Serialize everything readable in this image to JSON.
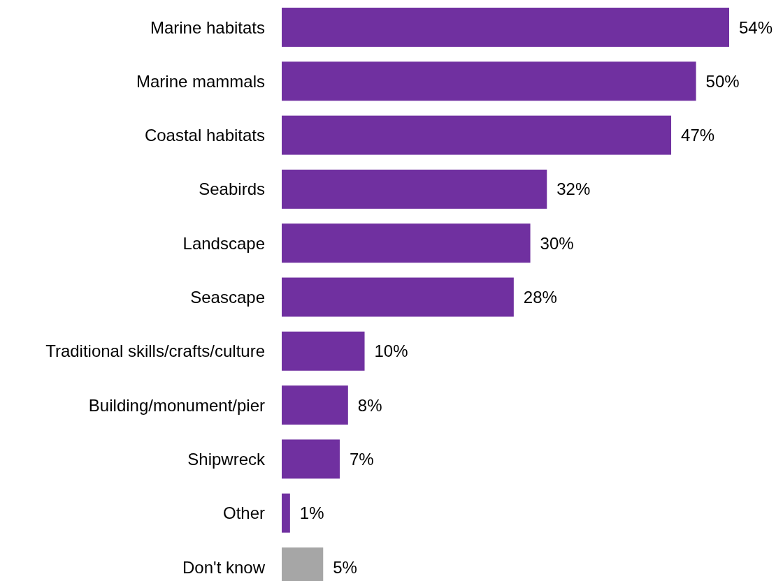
{
  "chart_data": {
    "type": "bar",
    "orientation": "horizontal",
    "categories": [
      "Marine habitats",
      "Marine mammals",
      "Coastal habitats",
      "Seabirds",
      "Landscape",
      "Seascape",
      "Traditional skills/crafts/culture",
      "Building/monument/pier",
      "Shipwreck",
      "Other",
      "Don't know"
    ],
    "values": [
      54,
      50,
      47,
      32,
      30,
      28,
      10,
      8,
      7,
      1,
      5
    ],
    "value_labels": [
      "54%",
      "50%",
      "47%",
      "32%",
      "30%",
      "28%",
      "10%",
      "8%",
      "7%",
      "1%",
      "5%"
    ],
    "colors": [
      "#7030a0",
      "#7030a0",
      "#7030a0",
      "#7030a0",
      "#7030a0",
      "#7030a0",
      "#7030a0",
      "#7030a0",
      "#7030a0",
      "#7030a0",
      "#a6a6a6"
    ]
  }
}
